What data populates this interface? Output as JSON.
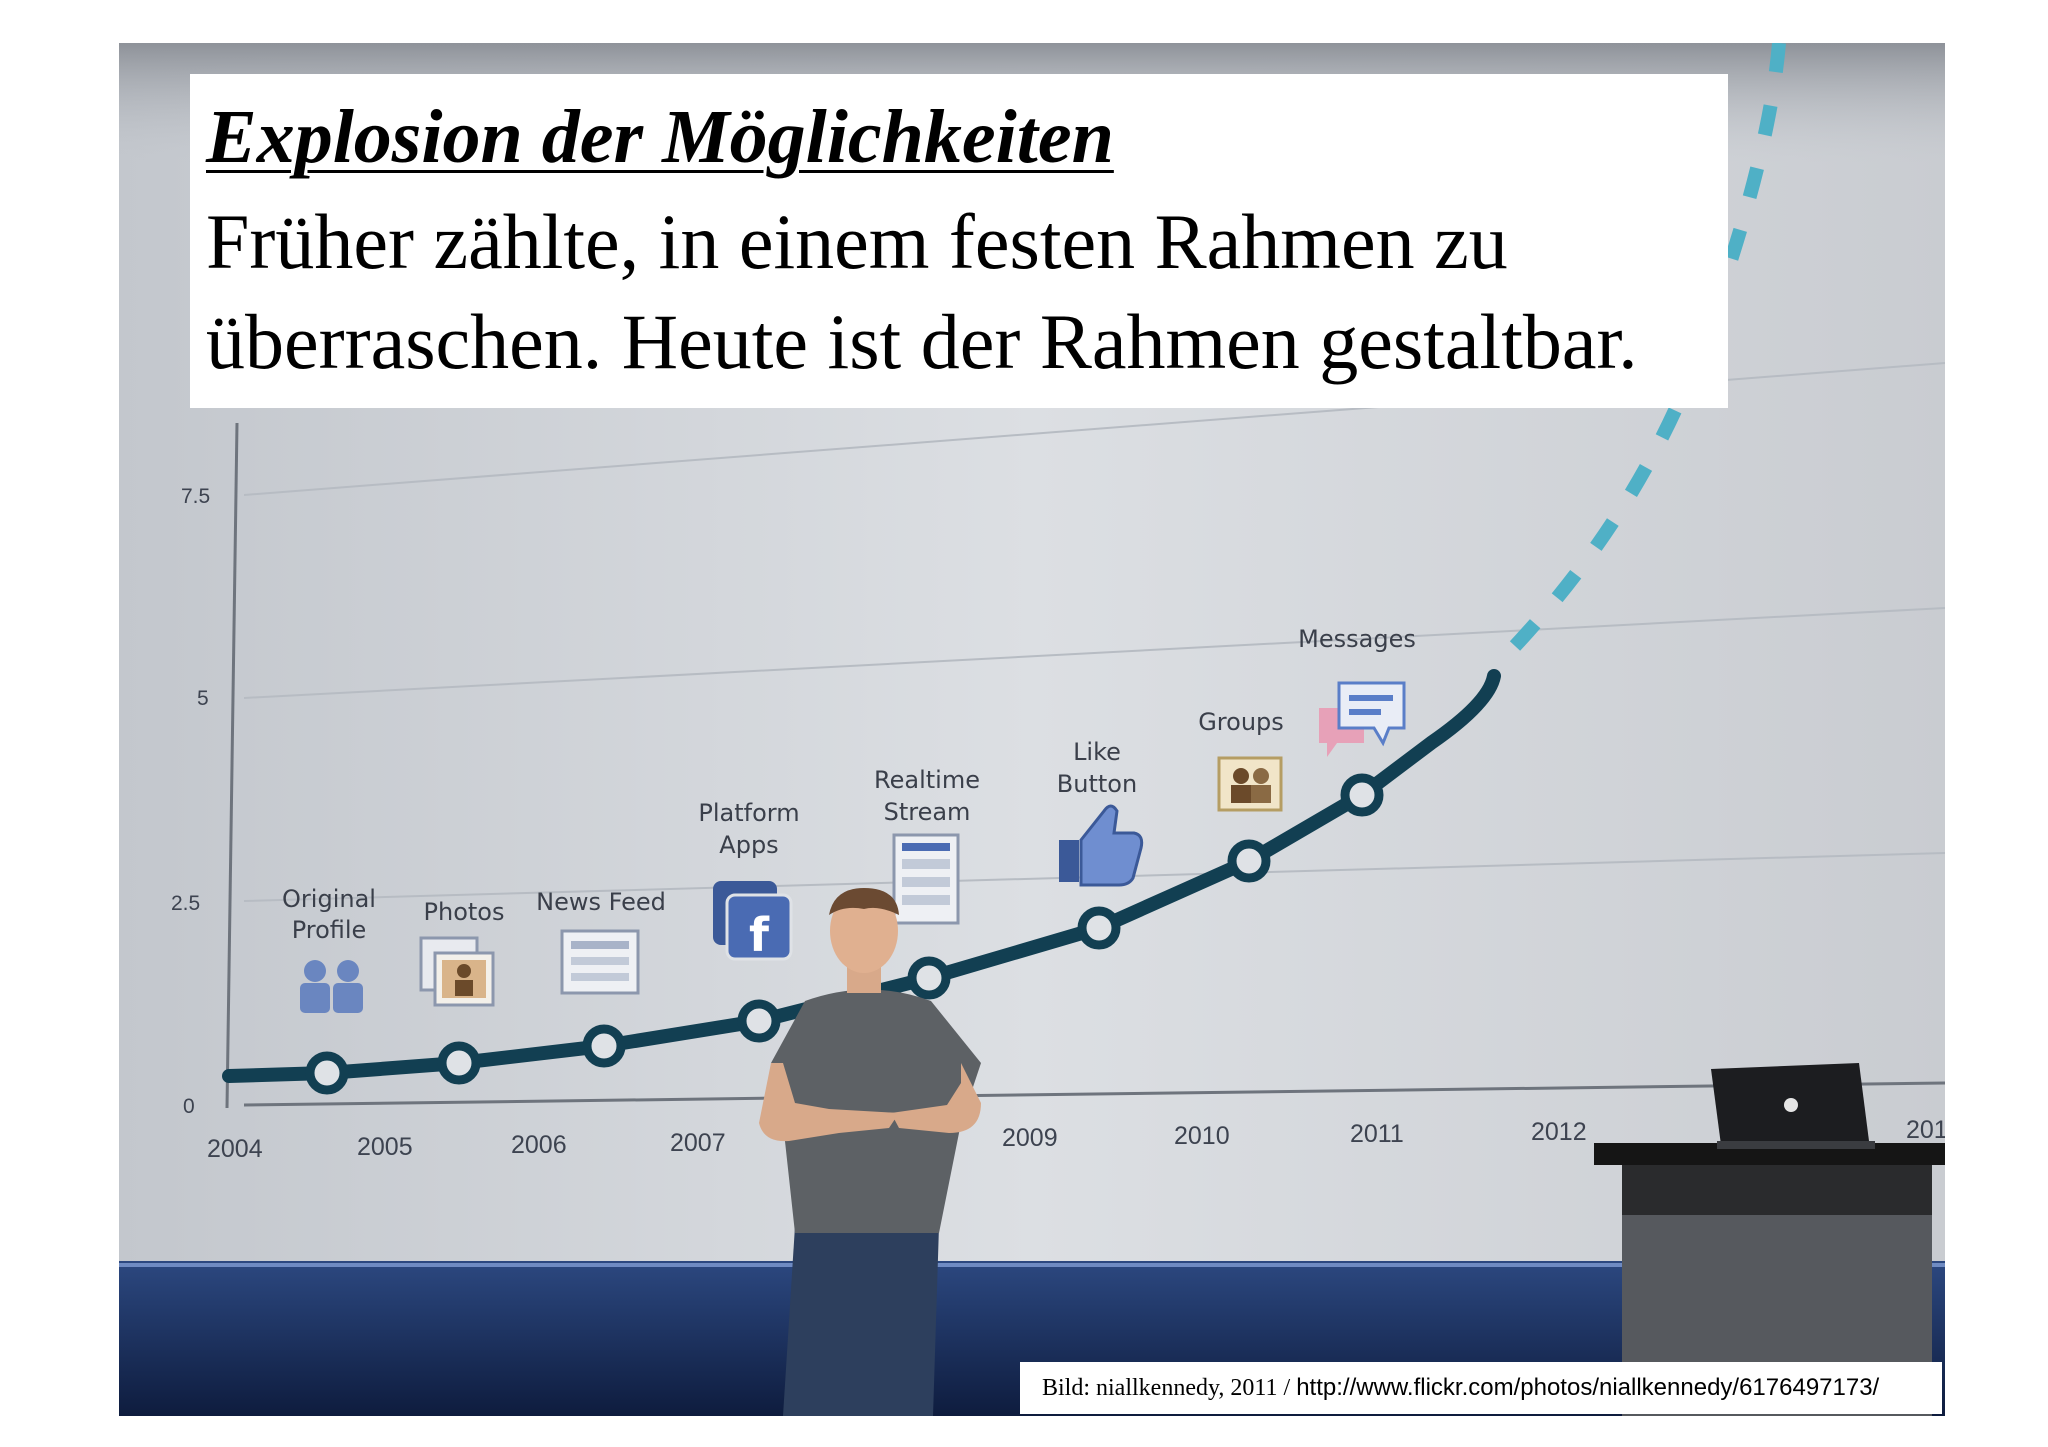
{
  "slide": {
    "title": "Explosion der Möglichkeiten",
    "body": "Früher zählte, in einem festen Rahmen zu überraschen. Heute ist der Rahmen gestaltbar.",
    "credit": {
      "source": "Bild: niallkennedy, 2011 / ",
      "url": "http://www.flickr.com/photos/niallkennedy/6176497173/"
    }
  },
  "photo": {
    "description_icons": [
      "people-icon",
      "photo-icon",
      "news-feed-icon",
      "facebook-icon",
      "stream-icon",
      "like-icon",
      "groups-icon",
      "messages-icon",
      "apple-logo-icon"
    ],
    "y_ticks": [
      "7.5",
      "5",
      "2.5",
      "0"
    ],
    "x_ticks": [
      "2004",
      "2005",
      "2006",
      "2007",
      "2009",
      "2010",
      "2011",
      "2012",
      "201"
    ],
    "features": [
      {
        "l1": "Original",
        "l2": "Profile"
      },
      {
        "l1": "Photos",
        "l2": ""
      },
      {
        "l1": "News Feed",
        "l2": ""
      },
      {
        "l1": "Platform",
        "l2": "Apps"
      },
      {
        "l1": "Realtime",
        "l2": "Stream"
      },
      {
        "l1": "Like",
        "l2": "Button"
      },
      {
        "l1": "Groups",
        "l2": ""
      },
      {
        "l1": "Messages",
        "l2": ""
      }
    ],
    "colors": {
      "curve": "#123f52",
      "dashed": "#4fb0c6",
      "screen": "#d3d7dc",
      "stage": "#1d3568",
      "facebook": "#3b5998"
    }
  }
}
